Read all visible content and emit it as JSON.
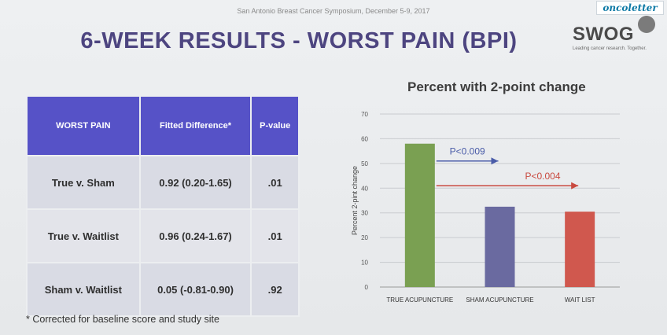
{
  "header": {
    "conference": "San Antonio Breast Cancer Symposium, December 5-9, 2017",
    "brand": "oncoletter",
    "title": "6-WEEK RESULTS  - WORST PAIN (BPI)",
    "logo": {
      "name": "SWOG",
      "tagline": "Leading cancer research. Together."
    }
  },
  "table": {
    "headers": [
      "WORST PAIN",
      "Fitted Difference*",
      "P-value"
    ],
    "rows": [
      [
        "True v. Sham",
        "0.92 (0.20-1.65)",
        ".01"
      ],
      [
        "True v. Waitlist",
        "0.96 (0.24-1.67)",
        ".01"
      ],
      [
        "Sham v. Waitlist",
        "0.05 (-0.81-0.90)",
        ".92"
      ]
    ],
    "footnote": "* Corrected for baseline score and study site"
  },
  "chart_data": {
    "type": "bar",
    "title": "Percent with 2-point change",
    "ylabel": "Percent 2-pint change",
    "xlabel": "",
    "categories": [
      "TRUE ACUPUNCTURE",
      "SHAM ACUPUNCTURE",
      "WAIT LIST"
    ],
    "values": [
      58,
      32.5,
      30.5
    ],
    "colors": [
      "#7aa052",
      "#6a6aa0",
      "#d0584e"
    ],
    "ylim": [
      0,
      70
    ],
    "yticks": [
      0,
      10,
      20,
      30,
      40,
      50,
      60,
      70
    ],
    "grid": true,
    "annotations": [
      {
        "text": "P<0.009",
        "from": "TRUE ACUPUNCTURE",
        "to": "SHAM ACUPUNCTURE",
        "y": 51,
        "color": "#4a5ca8"
      },
      {
        "text": "P<0.004",
        "from": "TRUE ACUPUNCTURE",
        "to": "WAIT LIST",
        "y": 41,
        "color": "#c94a40"
      }
    ]
  }
}
